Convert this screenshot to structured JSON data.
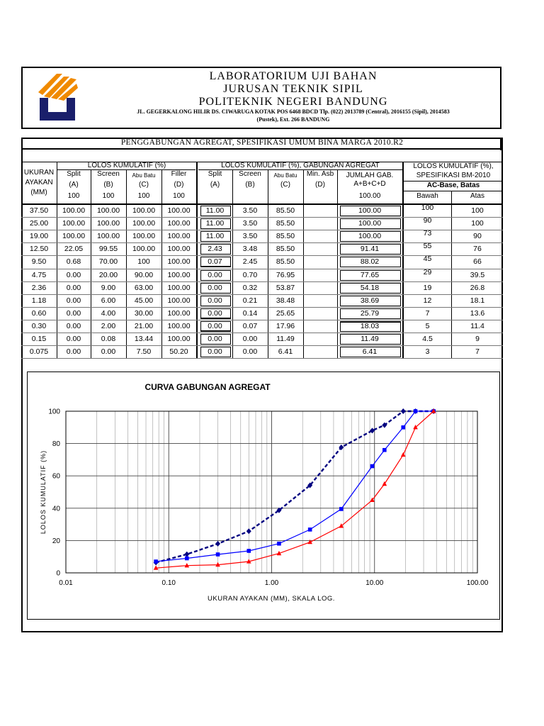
{
  "header": {
    "line1": "LABORATORIUM UJI BAHAN",
    "line2": "JURUSAN TEKNIK SIPIL",
    "line3": "POLITEKNIK NEGERI BANDUNG",
    "address1": "JL. GEGERKALONG HILIR DS. CIWARUGA KOTAK POS 6468 BDCD Tlp. (022) 2013789 (Central), 2016155 (Sipil), 2014583",
    "address2": "(Pustek), Ext. 266 BANDUNG"
  },
  "table": {
    "title": "PENGGABUNGAN AGREGAT, SPESIFIKASI UMUM BINA MARGA 2010.R2",
    "group_lolos": "LOLOS KUMULATIF (%)",
    "group_gabungan": "LOLOS KUMULATIF (%), GABUNGAN AGREGAT",
    "group_spec1": "LOLOS KUMULATIF (%),",
    "group_spec2": "SPESIFIKASI BM-2010",
    "spec_name": "AC-Base, Batas",
    "ukuran1": "UKURAN",
    "ukuran2": "AYAKAN",
    "ukuran3": "(MM)",
    "col_split": "Split",
    "col_screen": "Screen",
    "col_abu": "Abu Batu",
    "col_filler": "Filler",
    "col_minasb": "Min. Asb",
    "lbl_a": "(A)",
    "lbl_b": "(B)",
    "lbl_c": "(C)",
    "lbl_d": "(D)",
    "pct_a": "100",
    "pct_b": "100",
    "pct_c": "100",
    "pct_d": "100",
    "jumlah1": "JUMLAH GAB.",
    "jumlah2": "A+B+C+D",
    "jumlah_pct": "100.00",
    "bawah": "Bawah",
    "atas": "Atas",
    "rows": [
      [
        "37.50",
        "100.00",
        "100.00",
        "100.00",
        "100.00",
        "11.00",
        "3.50",
        "85.50",
        "",
        "100.00",
        "100",
        "100"
      ],
      [
        "25.00",
        "100.00",
        "100.00",
        "100.00",
        "100.00",
        "11.00",
        "3.50",
        "85.50",
        "",
        "100.00",
        "90",
        "100"
      ],
      [
        "19.00",
        "100.00",
        "100.00",
        "100.00",
        "100.00",
        "11.00",
        "3.50",
        "85.50",
        "",
        "100.00",
        "73",
        "90"
      ],
      [
        "12.50",
        "22.05",
        "99.55",
        "100.00",
        "100.00",
        "2.43",
        "3.48",
        "85.50",
        "",
        "91.41",
        "55",
        "76"
      ],
      [
        "9.50",
        "0.68",
        "70.00",
        "100",
        "100.00",
        "0.07",
        "2.45",
        "85.50",
        "",
        "88.02",
        "45",
        "66"
      ],
      [
        "4.75",
        "0.00",
        "20.00",
        "90.00",
        "100.00",
        "0.00",
        "0.70",
        "76.95",
        "",
        "77.65",
        "29",
        "39.5"
      ],
      [
        "2.36",
        "0.00",
        "9.00",
        "63.00",
        "100.00",
        "0.00",
        "0.32",
        "53.87",
        "",
        "54.18",
        "19",
        "26.8"
      ],
      [
        "1.18",
        "0.00",
        "6.00",
        "45.00",
        "100.00",
        "0.00",
        "0.21",
        "38.48",
        "",
        "38.69",
        "12",
        "18.1"
      ],
      [
        "0.60",
        "0.00",
        "4.00",
        "30.00",
        "100.00",
        "0.00",
        "0.14",
        "25.65",
        "",
        "25.79",
        "7",
        "13.6"
      ],
      [
        "0.30",
        "0.00",
        "2.00",
        "21.00",
        "100.00",
        "0.00",
        "0.07",
        "17.96",
        "",
        "18.03",
        "5",
        "11.4"
      ],
      [
        "0.15",
        "0.00",
        "0.08",
        "13.44",
        "100.00",
        "0.00",
        "0.00",
        "11.49",
        "",
        "11.49",
        "4.5",
        "9"
      ],
      [
        "0.075",
        "0.00",
        "0.00",
        "7.50",
        "50.20",
        "0.00",
        "0.00",
        "6.41",
        "",
        "6.41",
        "3",
        "7"
      ]
    ]
  },
  "chart_data": {
    "type": "line",
    "title": "CURVA GABUNGAN AGREGAT",
    "xlabel": "UKURAN AYAKAN (MM), SKALA LOG.",
    "ylabel": "LOLOS KUMULATIF (%)",
    "x_scale": "log",
    "xlim": [
      0.01,
      100
    ],
    "ylim": [
      0,
      100
    ],
    "x_ticks": [
      "0.01",
      "0.10",
      "1.00",
      "10.00",
      "100.00"
    ],
    "y_ticks": [
      "0",
      "20",
      "40",
      "60",
      "80",
      "100"
    ],
    "grid": true,
    "series": [
      {
        "color": "#000080",
        "style": "dashed",
        "marker": "diamond",
        "x": [
          0.075,
          0.15,
          0.3,
          0.6,
          1.18,
          2.36,
          4.75,
          9.5,
          12.5,
          19,
          25,
          37.5
        ],
        "y": [
          6.41,
          11.49,
          18.03,
          25.79,
          38.69,
          54.18,
          77.65,
          88.02,
          91.41,
          100,
          100,
          100
        ]
      },
      {
        "color": "#0000ff",
        "style": "solid",
        "marker": "square",
        "x": [
          0.075,
          0.15,
          0.3,
          0.6,
          1.18,
          2.36,
          4.75,
          9.5,
          12.5,
          19,
          25,
          37.5
        ],
        "y": [
          7,
          9,
          11.4,
          13.6,
          18.1,
          26.8,
          39.5,
          66,
          76,
          90,
          100,
          100
        ]
      },
      {
        "color": "#ff0000",
        "style": "solid",
        "marker": "triangle",
        "x": [
          0.075,
          0.15,
          0.3,
          0.6,
          1.18,
          2.36,
          4.75,
          9.5,
          12.5,
          19,
          25,
          37.5
        ],
        "y": [
          3,
          4.5,
          5,
          7,
          12,
          19,
          29,
          45,
          55,
          73,
          90,
          100
        ]
      }
    ]
  },
  "colors": {
    "line_gab": "#000080",
    "line_atas": "#0000ff",
    "line_bawah": "#ff0000",
    "logo_orange": "#f08a00",
    "logo_navy": "#1a1f6b"
  }
}
